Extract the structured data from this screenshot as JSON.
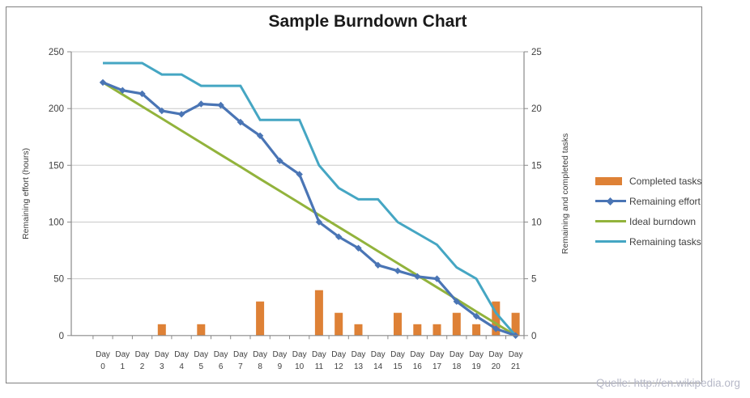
{
  "title": "Sample Burndown Chart",
  "source_note": "Quelle: http://en.wikipedia.org",
  "colors": {
    "grid": "#C9C9C9",
    "axis": "#8A8A8A",
    "frame": "#808080",
    "text": "#3F3F3F",
    "title": "#1A1A1A",
    "source": "#B7B9C8"
  },
  "chart_data": {
    "type": "combo",
    "title": "Sample Burndown Chart",
    "categories": [
      "Day 0",
      "Day 1",
      "Day 2",
      "Day 3",
      "Day 4",
      "Day 5",
      "Day 6",
      "Day 7",
      "Day 8",
      "Day 9",
      "Day 10",
      "Day 11",
      "Day 12",
      "Day 13",
      "Day 14",
      "Day 15",
      "Day 16",
      "Day 17",
      "Day 18",
      "Day 19",
      "Day 20",
      "Day 21"
    ],
    "left_axis": {
      "label": "Remaining effort (hours)",
      "min": 0,
      "max": 250,
      "step": 50,
      "ticks": [
        "0",
        "50",
        "100",
        "150",
        "200",
        "250"
      ]
    },
    "right_axis": {
      "label": "Remaining and completed tasks",
      "min": 0,
      "max": 25,
      "step": 5,
      "ticks": [
        "0",
        "5",
        "10",
        "15",
        "20",
        "25"
      ]
    },
    "grid": true,
    "legend_position": "right",
    "series": [
      {
        "name": "Completed tasks",
        "type": "bar",
        "axis": "right",
        "color": "#DE8136",
        "values": [
          0,
          0,
          0,
          1,
          0,
          1,
          0,
          0,
          3,
          0,
          0,
          4,
          2,
          1,
          0,
          2,
          1,
          1,
          2,
          1,
          3,
          2
        ]
      },
      {
        "name": "Remaining effort",
        "type": "line",
        "axis": "left",
        "color": "#4A75B5",
        "marker": "diamond",
        "values": [
          223,
          216,
          213,
          198,
          195,
          204,
          203,
          188,
          176,
          154,
          142,
          100,
          87,
          77,
          62,
          57,
          52,
          50,
          30,
          17,
          6,
          0
        ]
      },
      {
        "name": "Ideal burndown",
        "type": "line",
        "axis": "left",
        "color": "#92B33C",
        "values": [
          223,
          212.4,
          201.8,
          191.2,
          180.5,
          169.9,
          159.3,
          148.7,
          138,
          127.4,
          116.8,
          106.2,
          95.6,
          85,
          74.3,
          63.7,
          53.1,
          42.5,
          31.9,
          21.2,
          10.6,
          0
        ]
      },
      {
        "name": "Remaining tasks",
        "type": "line",
        "axis": "right",
        "color": "#45A6C3",
        "values": [
          24,
          24,
          24,
          23,
          23,
          22,
          22,
          22,
          19,
          19,
          19,
          15,
          13,
          12,
          12,
          10,
          9,
          8,
          6,
          5,
          2,
          0
        ]
      }
    ]
  }
}
